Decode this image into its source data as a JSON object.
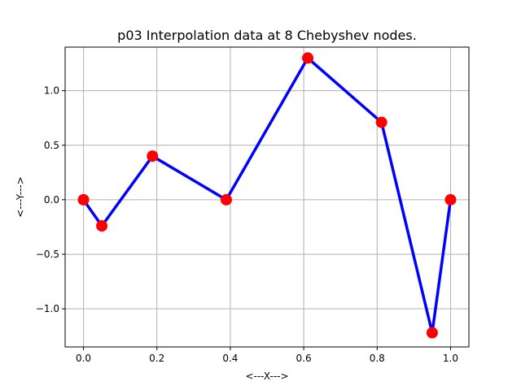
{
  "chart_data": {
    "type": "line",
    "title": "p03 Interpolation data at 8 Chebyshev nodes.",
    "xlabel": "<---X--->",
    "ylabel": "<---Y--->",
    "xlim": [
      -0.05,
      1.05
    ],
    "ylim": [
      -1.35,
      1.4
    ],
    "xticks": [
      0.0,
      0.2,
      0.4,
      0.6,
      0.8,
      1.0
    ],
    "xtick_labels": [
      "0.0",
      "0.2",
      "0.4",
      "0.6",
      "0.8",
      "1.0"
    ],
    "yticks": [
      -1.0,
      -0.5,
      0.0,
      0.5,
      1.0
    ],
    "ytick_labels": [
      "−1.0",
      "−0.5",
      "0.0",
      "0.5",
      "1.0"
    ],
    "grid": true,
    "series": [
      {
        "x": [
          0.0,
          0.05,
          0.188,
          0.389,
          0.611,
          0.812,
          0.95,
          1.0
        ],
        "y": [
          0.0,
          -0.24,
          0.4,
          0.0,
          1.3,
          0.71,
          -1.22,
          0.0
        ],
        "line_color": "#0000ff",
        "marker_color": "#ff0000"
      }
    ]
  }
}
